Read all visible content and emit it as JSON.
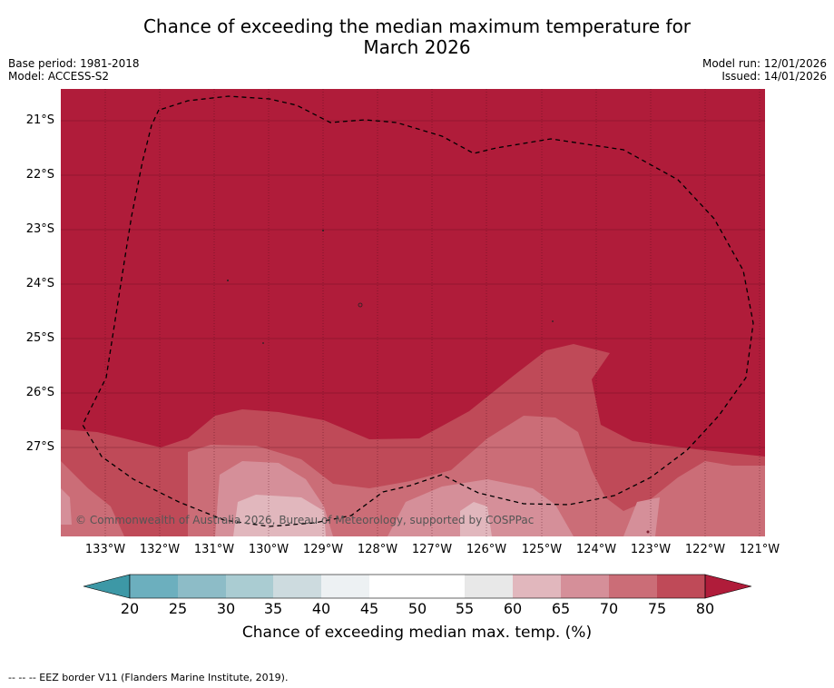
{
  "title_line1": "Chance of exceeding the median maximum temperature for",
  "title_line2": "March 2026",
  "base_period": "Base period: 1981-2018",
  "model": "Model: ACCESS-S2",
  "model_run": "Model run: 12/01/2026",
  "issued": "Issued: 14/01/2026",
  "copyright": "© Commonwealth of Australia 2026, Bureau of Meteorology, supported by COSPPac",
  "lat_labels": [
    "21°S",
    "22°S",
    "23°S",
    "24°S",
    "25°S",
    "26°S",
    "27°S"
  ],
  "lon_labels": [
    "133°W",
    "132°W",
    "131°W",
    "130°W",
    "129°W",
    "128°W",
    "127°W",
    "126°W",
    "125°W",
    "124°W",
    "123°W",
    "122°W",
    "121°W"
  ],
  "colorbar": {
    "ticks": [
      "20",
      "25",
      "30",
      "35",
      "40",
      "45",
      "50",
      "55",
      "60",
      "65",
      "70",
      "75",
      "80"
    ],
    "colors": {
      "below20": "#3d98a6",
      "c20_25": "#6cafbe",
      "c25_30": "#8dbcc7",
      "c30_35": "#aaccd2",
      "c35_40": "#cddbdf",
      "c40_45": "#edf1f3",
      "c45_50": "#ffffff",
      "c50_55": "#ffffff",
      "c55_60": "#e8e8e8",
      "c60_65": "#e1b7bd",
      "c65_70": "#d58f99",
      "c70_75": "#cb6d77",
      "c75_80": "#bf4a58",
      "above80": "#b01c3a"
    },
    "label": "Chance of exceeding median max. temp. (%)"
  },
  "footer": "--  --  -- EEZ border V11 (Flanders Marine Institute, 2019)."
}
